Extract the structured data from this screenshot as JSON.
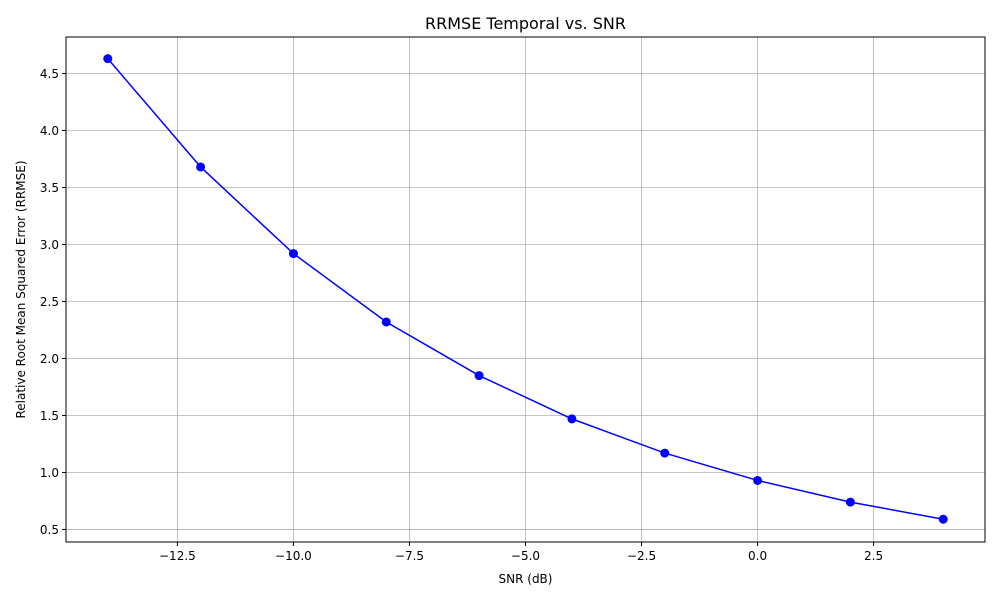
{
  "chart_data": {
    "type": "line",
    "title": "RRMSE Temporal vs. SNR",
    "xlabel": "SNR (dB)",
    "ylabel": "Relative Root Mean Squared Error (RRMSE)",
    "xlim": [
      -14.9,
      4.9
    ],
    "ylim": [
      0.39,
      4.82
    ],
    "grid": true,
    "x_ticks": [
      -12.5,
      -10.0,
      -7.5,
      -5.0,
      -2.5,
      0.0,
      2.5
    ],
    "x_tick_labels": [
      "−12.5",
      "−10.0",
      "−7.5",
      "−5.0",
      "−2.5",
      "0.0",
      "2.5"
    ],
    "y_ticks": [
      0.5,
      1.0,
      1.5,
      2.0,
      2.5,
      3.0,
      3.5,
      4.0,
      4.5
    ],
    "y_tick_labels": [
      "0.5",
      "1.0",
      "1.5",
      "2.0",
      "2.5",
      "3.0",
      "3.5",
      "4.0",
      "4.5"
    ],
    "series": [
      {
        "color": "#0000ff",
        "marker": "circle",
        "x": [
          -14,
          -12,
          -10,
          -8,
          -6,
          -4,
          -2,
          0,
          2,
          4
        ],
        "y": [
          4.63,
          3.68,
          2.92,
          2.32,
          1.85,
          1.47,
          1.17,
          0.93,
          0.74,
          0.59
        ]
      }
    ]
  }
}
